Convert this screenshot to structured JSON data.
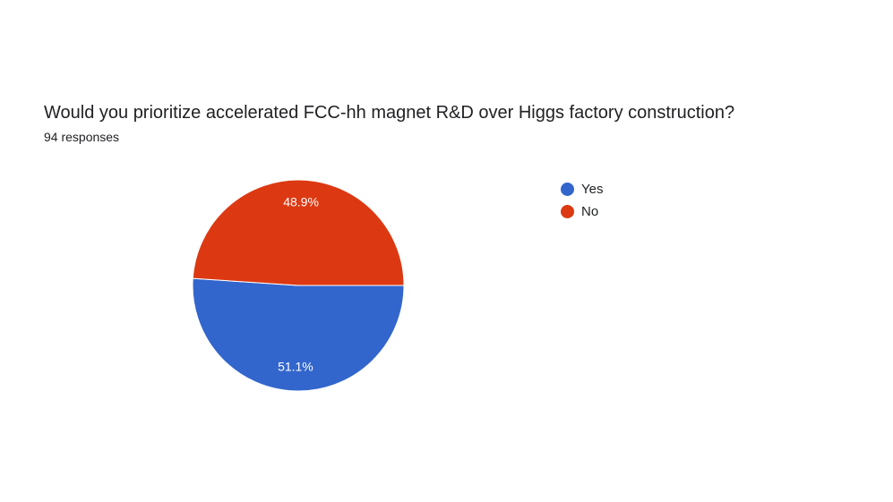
{
  "form": {
    "question": "Would you prioritize accelerated FCC-hh magnet R&D over Higgs factory construction?",
    "response_count": "94 responses"
  },
  "colors": {
    "yes": "#3366cc",
    "no": "#dc3912",
    "slice_border": "#ffffff",
    "label_text": "#ffffff"
  },
  "chart_data": {
    "type": "pie",
    "title": "Would you prioritize accelerated FCC-hh magnet R&D over Higgs factory construction?",
    "total": 94,
    "slices": [
      {
        "label": "Yes",
        "value": 48,
        "percent": 51.1,
        "percent_label": "51.1%",
        "color": "#3366cc"
      },
      {
        "label": "No",
        "value": 46,
        "percent": 48.9,
        "percent_label": "48.9%",
        "color": "#dc3912"
      }
    ],
    "legend_position": "right"
  }
}
